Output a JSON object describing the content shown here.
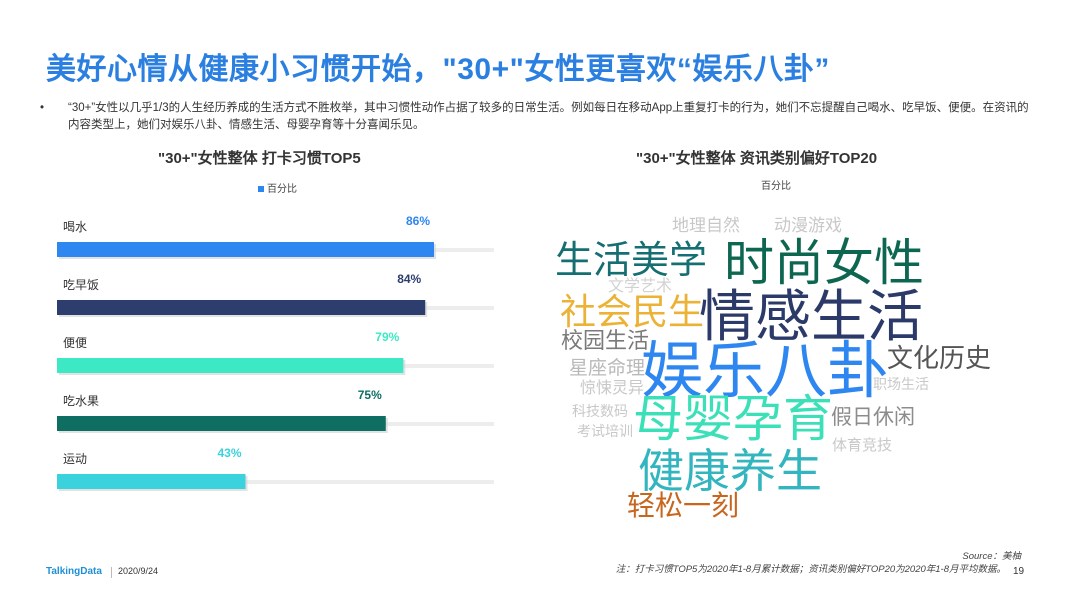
{
  "title": "美好心情从健康小习惯开始，\"30+\"女性更喜欢“娱乐八卦”",
  "bullet": {
    "symbol": "•",
    "text": "“30+”女性以几乎1/3的人生经历养成的生活方式不胜枚举，其中习惯性动作占据了较多的日常生活。例如每日在移动App上重复打卡的行为，她们不忘提醒自己喝水、吃早饭、便便。在资讯的内容类型上，她们对娱乐八卦、情感生活、母婴孕育等十分喜闻乐见。"
  },
  "chart_data": [
    {
      "type": "bar",
      "orientation": "horizontal",
      "title": "\"30+\"女性整体  打卡习惯TOP5",
      "legend": "百分比",
      "categories": [
        "喝水",
        "吃早饭",
        "便便",
        "吃水果",
        "运动"
      ],
      "values": [
        86,
        84,
        79,
        75,
        43
      ],
      "value_labels": [
        "86%",
        "84%",
        "79%",
        "75%",
        "43%"
      ],
      "colors": [
        "#2e86f0",
        "#2c3d6e",
        "#3de8c4",
        "#0e6e62",
        "#3ad2dc"
      ],
      "xlim": [
        0,
        100
      ],
      "grid": false
    },
    {
      "type": "wordcloud",
      "title": "\"30+\"女性整体  资讯类别偏好TOP20",
      "legend": "百分比",
      "words": [
        {
          "text": "地理自然",
          "color": "#c8c8c8"
        },
        {
          "text": "动漫游戏",
          "color": "#c8c8c8"
        },
        {
          "text": "生活美学",
          "color": "#156f72"
        },
        {
          "text": "时尚女性",
          "color": "#0d6650"
        },
        {
          "text": "文学艺术",
          "color": "#d2d2d2"
        },
        {
          "text": "社会民生",
          "color": "#ecb236"
        },
        {
          "text": "情感生活",
          "color": "#2c3a6a"
        },
        {
          "text": "校园生活",
          "color": "#7a7a7a"
        },
        {
          "text": "娱乐八卦",
          "color": "#2e86f0"
        },
        {
          "text": "文化历史",
          "color": "#555555"
        },
        {
          "text": "星座命理",
          "color": "#b9b9b9"
        },
        {
          "text": "惊悚灵异",
          "color": "#c8c8c8"
        },
        {
          "text": "职场生活",
          "color": "#c8c8c8"
        },
        {
          "text": "科技数码",
          "color": "#c8c8c8"
        },
        {
          "text": "母婴孕育",
          "color": "#3ce0b8"
        },
        {
          "text": "假日休闲",
          "color": "#8c8c8c"
        },
        {
          "text": "考试培训",
          "color": "#c8c8c8"
        },
        {
          "text": "体育竞技",
          "color": "#c8c8c8"
        },
        {
          "text": "健康养生",
          "color": "#33b5bf"
        },
        {
          "text": "轻松一刻",
          "color": "#c8661e"
        }
      ]
    }
  ],
  "footer": {
    "logo": "TalkingData",
    "date": "2020/9/24",
    "source": "Source：美柚",
    "note": "注：打卡习惯TOP5为2020年1-8月累计数据；资讯类别偏好TOP20为2020年1-8月平均数据。",
    "page": "19"
  }
}
